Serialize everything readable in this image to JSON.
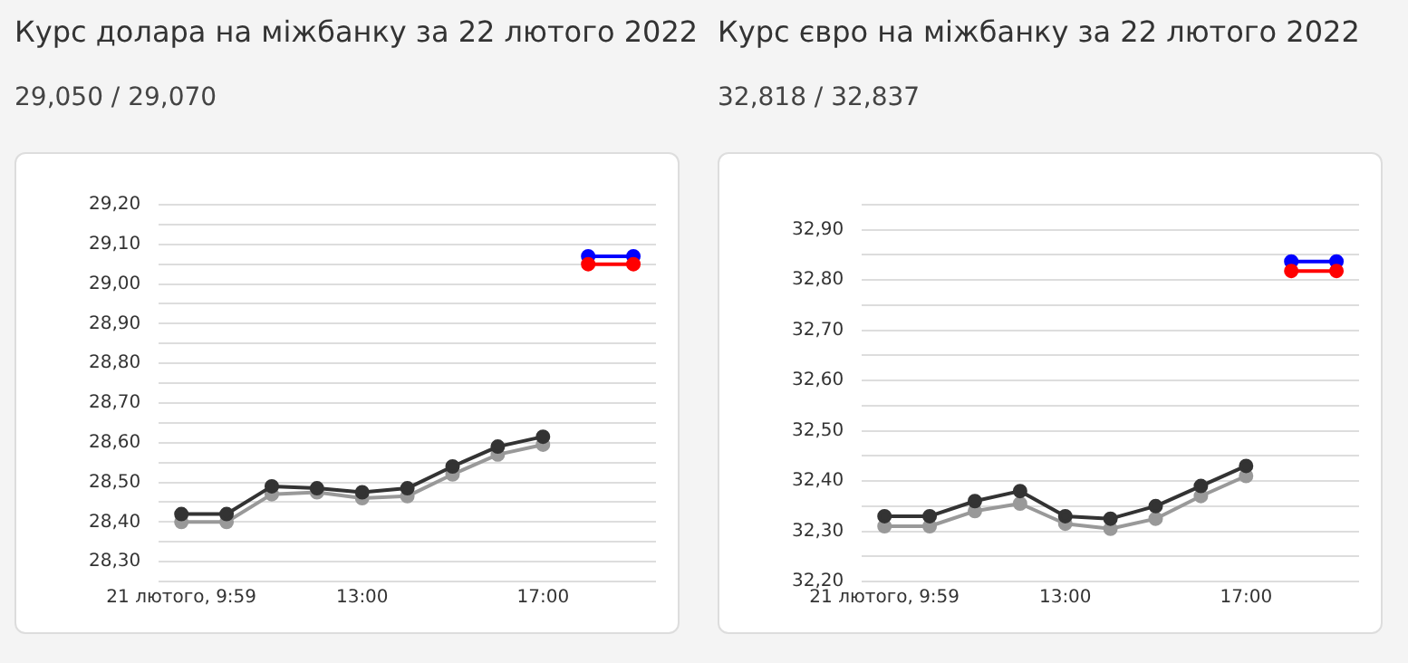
{
  "chart_data": [
    {
      "type": "line",
      "title": "Курс долара на міжбанку за 22 лютого 2022",
      "subtitle": "29,050 / 29,070",
      "categories": [
        "21 лютого, 9:59",
        null,
        null,
        null,
        "13:00",
        null,
        null,
        null,
        "17:00",
        null,
        null
      ],
      "series": [
        {
          "color": "#333333",
          "values": [
            28.42,
            28.42,
            28.49,
            28.485,
            28.475,
            28.485,
            28.54,
            28.59,
            28.615,
            null,
            null
          ]
        },
        {
          "color": "#999999",
          "values": [
            28.4,
            28.4,
            28.47,
            28.475,
            28.46,
            28.465,
            28.52,
            28.57,
            28.595,
            null,
            null
          ]
        },
        {
          "color": "#ff0000",
          "values": [
            null,
            null,
            null,
            null,
            null,
            null,
            null,
            null,
            null,
            29.05,
            29.05
          ]
        },
        {
          "color": "#0000ff",
          "values": [
            null,
            null,
            null,
            null,
            null,
            null,
            null,
            null,
            null,
            29.07,
            29.07
          ]
        }
      ],
      "ylim": [
        28.25,
        29.2
      ],
      "yticks": [
        {
          "value": 28.25,
          "label": null
        },
        {
          "value": 28.3,
          "label": "28,30"
        },
        {
          "value": 28.35,
          "label": null
        },
        {
          "value": 28.4,
          "label": "28,40"
        },
        {
          "value": 28.45,
          "label": null
        },
        {
          "value": 28.5,
          "label": "28,50"
        },
        {
          "value": 28.55,
          "label": null
        },
        {
          "value": 28.6,
          "label": "28,60"
        },
        {
          "value": 28.65,
          "label": null
        },
        {
          "value": 28.7,
          "label": "28,70"
        },
        {
          "value": 28.75,
          "label": null
        },
        {
          "value": 28.8,
          "label": "28,80"
        },
        {
          "value": 28.85,
          "label": null
        },
        {
          "value": 28.9,
          "label": "28,90"
        },
        {
          "value": 28.95,
          "label": null
        },
        {
          "value": 29.0,
          "label": "29,00"
        },
        {
          "value": 29.05,
          "label": null
        },
        {
          "value": 29.1,
          "label": "29,10"
        },
        {
          "value": 29.15,
          "label": null
        },
        {
          "value": 29.2,
          "label": "29,20"
        }
      ],
      "grid": "y",
      "legend": false,
      "marker": "circle",
      "line_style": "solid"
    },
    {
      "type": "line",
      "title": "Курс євро на міжбанку за 22 лютого 2022",
      "subtitle": "32,818 / 32,837",
      "categories": [
        "21 лютого, 9:59",
        null,
        null,
        null,
        "13:00",
        null,
        null,
        null,
        "17:00",
        null,
        null
      ],
      "series": [
        {
          "color": "#333333",
          "values": [
            32.33,
            32.33,
            32.36,
            32.38,
            32.33,
            32.325,
            32.35,
            32.39,
            32.43,
            null,
            null
          ]
        },
        {
          "color": "#999999",
          "values": [
            32.31,
            32.31,
            32.34,
            32.355,
            32.315,
            32.305,
            32.325,
            32.37,
            32.41,
            null,
            null
          ]
        },
        {
          "color": "#ff0000",
          "values": [
            null,
            null,
            null,
            null,
            null,
            null,
            null,
            null,
            null,
            32.818,
            32.818
          ]
        },
        {
          "color": "#0000ff",
          "values": [
            null,
            null,
            null,
            null,
            null,
            null,
            null,
            null,
            null,
            32.837,
            32.837
          ]
        }
      ],
      "ylim": [
        32.2,
        32.95
      ],
      "yticks": [
        {
          "value": 32.2,
          "label": "32,20"
        },
        {
          "value": 32.25,
          "label": null
        },
        {
          "value": 32.3,
          "label": "32,30"
        },
        {
          "value": 32.35,
          "label": null
        },
        {
          "value": 32.4,
          "label": "32,40"
        },
        {
          "value": 32.45,
          "label": null
        },
        {
          "value": 32.5,
          "label": "32,50"
        },
        {
          "value": 32.55,
          "label": null
        },
        {
          "value": 32.6,
          "label": "32,60"
        },
        {
          "value": 32.65,
          "label": null
        },
        {
          "value": 32.7,
          "label": "32,70"
        },
        {
          "value": 32.75,
          "label": null
        },
        {
          "value": 32.8,
          "label": "32,80"
        },
        {
          "value": 32.85,
          "label": null
        },
        {
          "value": 32.9,
          "label": "32,90"
        },
        {
          "value": 32.95,
          "label": null
        }
      ],
      "grid": "y",
      "legend": false,
      "marker": "circle",
      "line_style": "solid"
    }
  ]
}
